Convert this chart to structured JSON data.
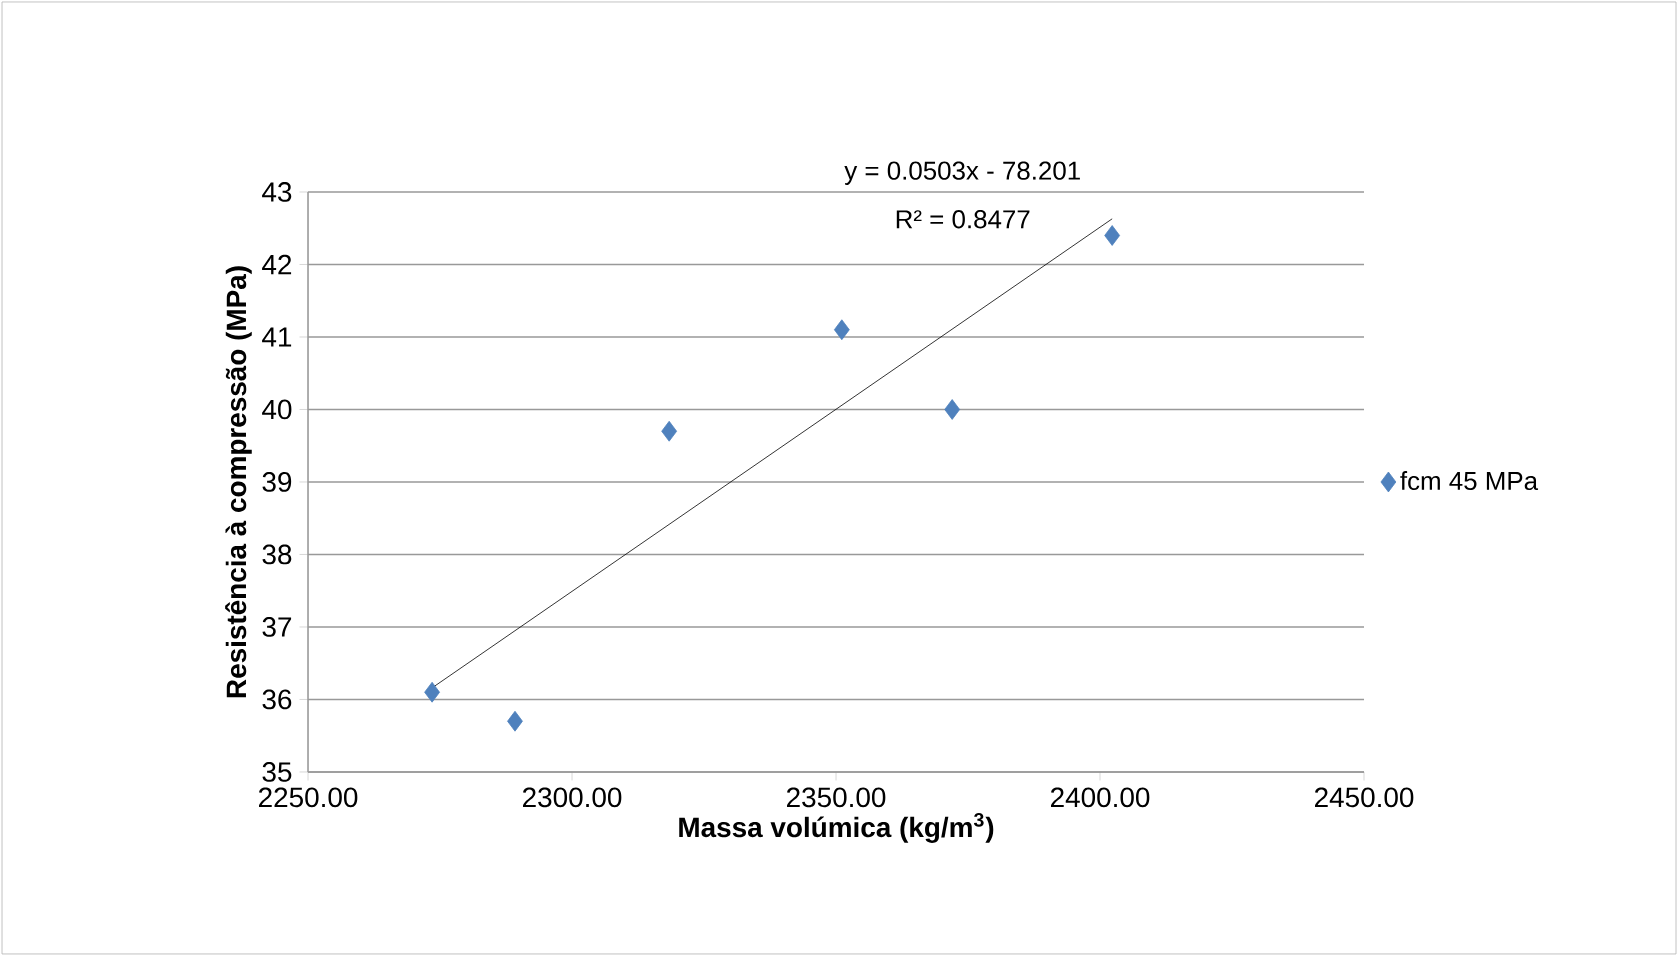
{
  "chart_data": {
    "type": "scatter",
    "xlabel": "Massa volúmica (kg/m$^{3}$)",
    "ylabel": "Resistência à compressão (MPa)",
    "annotations": [
      "y = 0.0503x - 78.201",
      "R² = 0.8477"
    ],
    "series": [
      {
        "name": "fcm 45 MPa",
        "color": "#4f81bd",
        "marker": "diamond",
        "x": [
          2273.5,
          2289.2,
          2318.4,
          2351.1,
          2372.0,
          2402.3
        ],
        "values": [
          36.1,
          35.7,
          39.7,
          41.1,
          40.0,
          42.4
        ]
      },
      {
        "type": "line",
        "color": "#000000",
        "marker": "none",
        "x": [
          2273.5,
          2402.3
        ],
        "values": [
          36.16,
          42.63
        ]
      }
    ],
    "xlim": [
      2250,
      2450
    ],
    "ylim": [
      35,
      43
    ],
    "xticks": [
      {
        "value": 2250,
        "label": "2250.00"
      },
      {
        "value": 2300,
        "label": "2300.00"
      },
      {
        "value": 2350,
        "label": "2350.00"
      },
      {
        "value": 2400,
        "label": "2400.00"
      },
      {
        "value": 2450,
        "label": "2450.00"
      }
    ],
    "yticks": [
      35,
      36,
      37,
      38,
      39,
      40,
      41,
      42,
      43
    ],
    "grid": "y",
    "legend": "right"
  }
}
